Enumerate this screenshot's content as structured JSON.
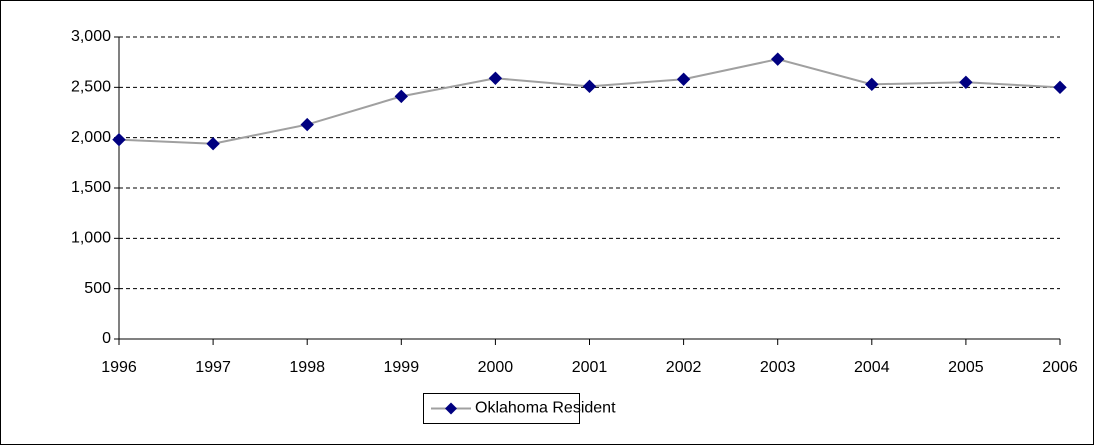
{
  "chart_data": {
    "type": "line",
    "x": [
      1996,
      1997,
      1998,
      1999,
      2000,
      2001,
      2002,
      2003,
      2004,
      2005,
      2006
    ],
    "series": [
      {
        "name": "Oklahoma Resident",
        "color": "#a0a0a0",
        "marker_color": "#000080",
        "values": [
          1980,
          1940,
          2130,
          2410,
          2590,
          2510,
          2580,
          2780,
          2530,
          2550,
          2500
        ]
      }
    ],
    "xlim": [
      1996,
      2006
    ],
    "xticks": [
      1996,
      1997,
      1998,
      1999,
      2000,
      2001,
      2002,
      2003,
      2004,
      2005,
      2006
    ],
    "ylim": [
      0,
      3000
    ],
    "yticks": [
      0,
      500,
      {
        "value": 1000,
        "label": "1,000"
      },
      {
        "value": 1500,
        "label": "1,500"
      },
      {
        "value": 2000,
        "label": "2,000"
      },
      {
        "value": 2500,
        "label": "2,500"
      },
      {
        "value": 3000,
        "label": "3,000"
      }
    ],
    "grid": true,
    "legend": "bottom"
  }
}
